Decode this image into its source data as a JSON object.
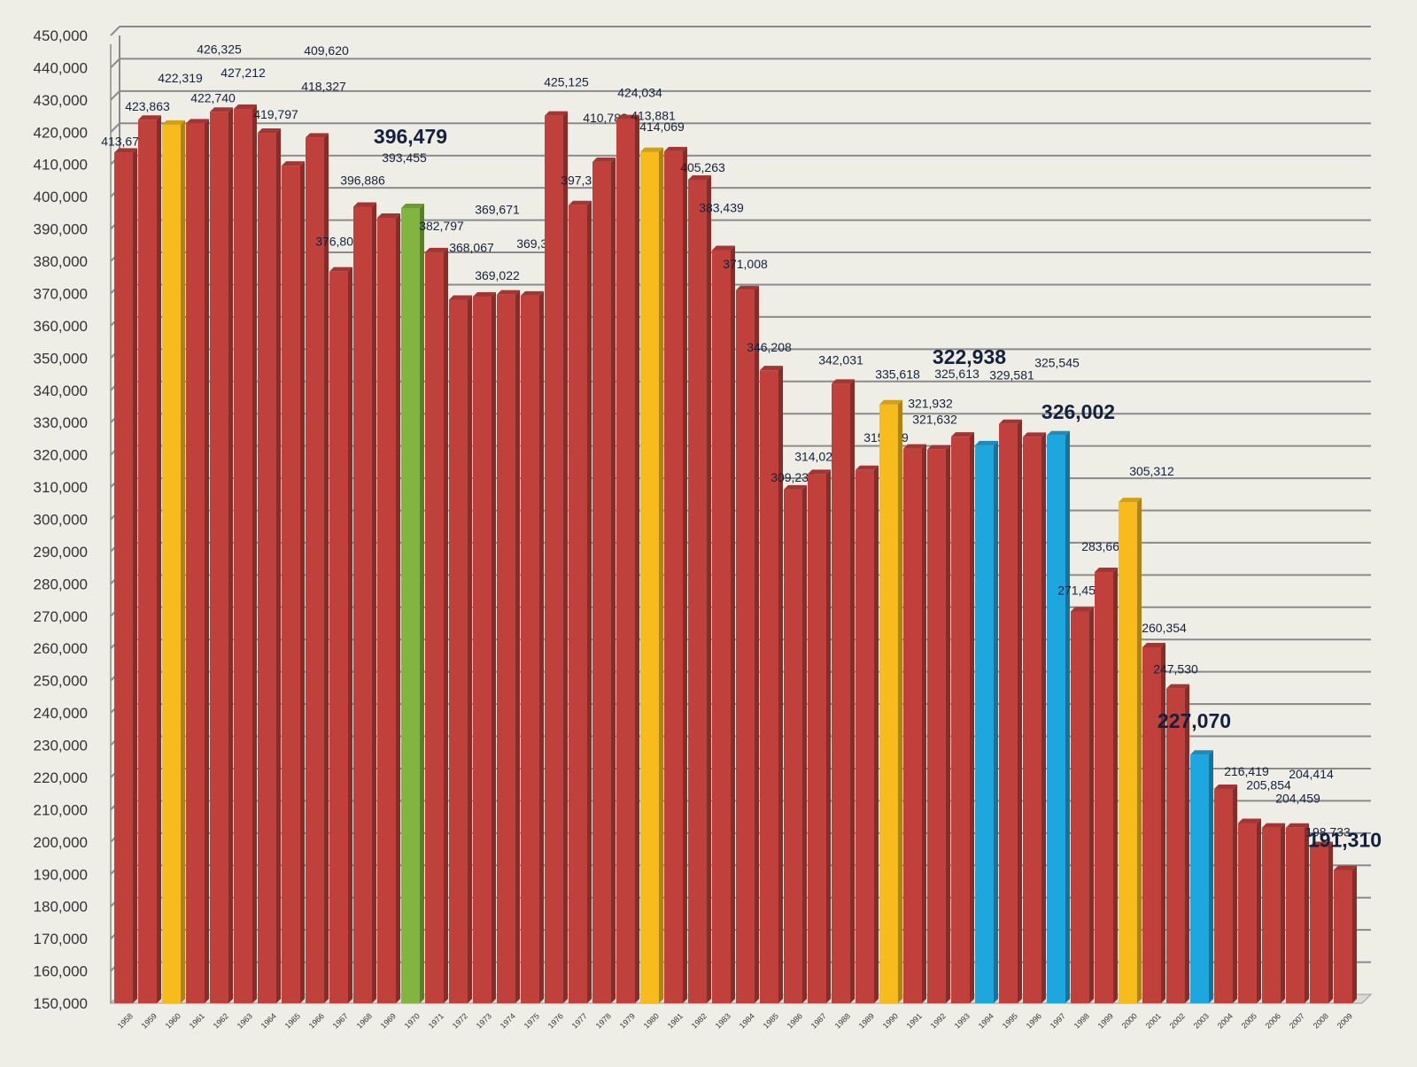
{
  "chart_data": {
    "type": "bar",
    "title": "",
    "xlabel": "",
    "ylabel": "",
    "ylim": [
      150000,
      450000
    ],
    "ytick_step": 10000,
    "grid": true,
    "legend": "none",
    "categories": [
      "1958",
      "1959",
      "1960",
      "1961",
      "1962",
      "1963",
      "1964",
      "1965",
      "1966",
      "1967",
      "1968",
      "1969",
      "1970",
      "1971",
      "1972",
      "1973",
      "1974",
      "1975",
      "1976",
      "1977",
      "1978",
      "1979",
      "1980",
      "1981",
      "1982",
      "1983",
      "1984",
      "1985",
      "1986",
      "1987",
      "1988",
      "1989",
      "1990",
      "1991",
      "1992",
      "1993",
      "1994",
      "1995",
      "1996",
      "1997",
      "1998",
      "1999",
      "2000",
      "2001",
      "2002",
      "2003",
      "2004",
      "2005",
      "2006",
      "2007",
      "2008",
      "2009"
    ],
    "values": [
      413679,
      423863,
      422319,
      422740,
      426325,
      427212,
      419797,
      409620,
      418327,
      376806,
      396886,
      393455,
      396479,
      382797,
      368067,
      369022,
      369671,
      369349,
      425125,
      397373,
      410783,
      424034,
      413881,
      414069,
      405263,
      383439,
      371008,
      346208,
      309230,
      314024,
      342031,
      315299,
      335618,
      321932,
      321632,
      325613,
      322938,
      329581,
      325545,
      326002,
      271450,
      283661,
      305312,
      260354,
      247530,
      227070,
      216419,
      205854,
      204459,
      204414,
      198733,
      191310
    ],
    "labels": [
      "413,679",
      "423,863",
      "422,319",
      "422,740",
      "426,325",
      "427,212",
      "419,797",
      "409,620",
      "418,327",
      "376,806",
      "396,886",
      "393,455",
      "396,479",
      "382,797",
      "368,067",
      "369,022",
      "369,671",
      "369,349",
      "425,125",
      "397,373",
      "410,783",
      "424,034",
      "413,881",
      "414,069",
      "405,263",
      "383,439",
      "371,008",
      "346,208",
      "309,230",
      "314,024",
      "342,031",
      "315,299",
      "335,618",
      "321,932",
      "321,632",
      "325,613",
      "322,938",
      "329,581",
      "325,545",
      "326,002",
      "271,450",
      "283,661",
      "305,312",
      "260,354",
      "247,530",
      "227,070",
      "216,419",
      "205,854",
      "204,459",
      "204,414",
      "198,733",
      "191,310"
    ],
    "highlight": {
      "1960": "yellow",
      "1970": "green",
      "1980": "yellow",
      "1990": "yellow",
      "1994": "blue",
      "1997": "blue",
      "2000": "yellow",
      "2003": "blue"
    },
    "emphasized_labels": [
      "1970",
      "1994",
      "1997",
      "2003",
      "2009"
    ],
    "colors": {
      "red": "#c0403c",
      "yellow": "#f7bb1b",
      "green": "#82b440",
      "blue": "#1ea6df",
      "grid": "#8a8a8a",
      "label": "#14213d",
      "background": "#efeee6"
    }
  }
}
